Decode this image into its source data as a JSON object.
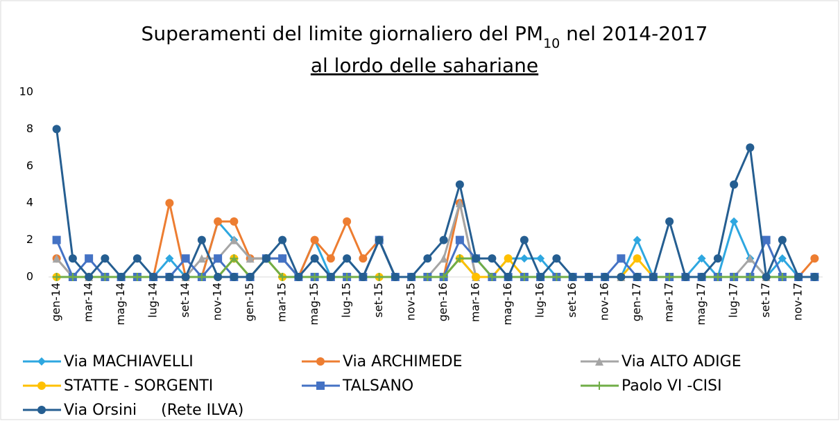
{
  "chart_data": {
    "type": "line",
    "title": "Superamenti del limite giornaliero del PM",
    "title_subscript": "10",
    "title_suffix": " nel 2014-2017",
    "subtitle": "al lordo delle sahariane",
    "categories": [
      "gen-14",
      null,
      "mar-14",
      null,
      "mag-14",
      null,
      "lug-14",
      null,
      "set-14",
      null,
      "nov-14",
      null,
      "gen-15",
      null,
      "mar-15",
      null,
      "mag-15",
      null,
      "lug-15",
      null,
      "set-15",
      null,
      "nov-15",
      null,
      "gen-16",
      null,
      "mar-16",
      null,
      "mag-16",
      null,
      "lug-16",
      null,
      "set-16",
      null,
      "nov-16",
      null,
      "gen-17",
      null,
      "mar-17",
      null,
      "mag-17",
      null,
      "lug-17",
      null,
      "set-17",
      null,
      "nov-17",
      null
    ],
    "ylim": [
      0,
      10
    ],
    "yticks": [
      0,
      2,
      4,
      6,
      8,
      10
    ],
    "grid": false,
    "series": [
      {
        "name": "Via MACHIAVELLI",
        "color": "#2ea7e0",
        "marker": "diamond",
        "values": [
          0,
          0,
          0,
          0,
          0,
          0,
          0,
          1,
          0,
          0,
          3,
          2,
          1,
          1,
          1,
          0,
          2,
          0,
          1,
          0,
          2,
          0,
          0,
          0,
          0,
          1,
          0,
          0,
          1,
          1,
          1,
          0,
          0,
          0,
          0,
          0,
          2,
          0,
          0,
          0,
          1,
          0,
          3,
          1,
          0,
          1,
          0,
          0
        ]
      },
      {
        "name": "Via ARCHIMEDE",
        "color": "#ed7d31",
        "marker": "circle",
        "values": [
          1,
          0,
          0,
          0,
          0,
          0,
          0,
          4,
          0,
          0,
          3,
          3,
          1,
          1,
          1,
          0,
          2,
          1,
          3,
          1,
          2,
          0,
          0,
          0,
          0,
          4,
          0,
          0,
          0,
          0,
          0,
          0,
          0,
          0,
          0,
          0,
          0,
          0,
          0,
          0,
          0,
          0,
          0,
          0,
          0,
          0,
          0,
          1
        ]
      },
      {
        "name": "Via ALTO ADIGE",
        "color": "#a5a5a5",
        "marker": "triangle",
        "values": [
          1,
          0,
          0,
          0,
          0,
          0,
          0,
          0,
          0,
          1,
          1,
          2,
          1,
          1,
          1,
          0,
          0,
          0,
          0,
          0,
          2,
          0,
          0,
          0,
          1,
          4,
          0,
          0,
          0,
          0,
          0,
          0,
          0,
          0,
          0,
          0,
          0,
          0,
          0,
          0,
          0,
          0,
          0,
          1,
          0,
          0,
          0,
          0
        ]
      },
      {
        "name": "STATTE - SORGENTI",
        "color": "#ffc000",
        "marker": "circle",
        "values": [
          0,
          0,
          0,
          0,
          0,
          0,
          0,
          0,
          0,
          0,
          0,
          1,
          0,
          1,
          0,
          0,
          0,
          0,
          0,
          0,
          0,
          0,
          0,
          0,
          0,
          1,
          0,
          0,
          1,
          0,
          0,
          0,
          0,
          0,
          0,
          0,
          1,
          0,
          0,
          0,
          0,
          0,
          0,
          0,
          0,
          0,
          0,
          0
        ]
      },
      {
        "name": "TALSANO",
        "color": "#4472c4",
        "marker": "square",
        "values": [
          2,
          0,
          1,
          0,
          0,
          0,
          0,
          0,
          1,
          0,
          1,
          0,
          0,
          1,
          1,
          0,
          0,
          0,
          0,
          0,
          2,
          0,
          0,
          0,
          0,
          2,
          1,
          0,
          0,
          0,
          0,
          0,
          0,
          0,
          0,
          1,
          0,
          0,
          0,
          0,
          0,
          0,
          0,
          0,
          2,
          0,
          0,
          0
        ]
      },
      {
        "name": "Paolo VI -CISI",
        "color": "#70ad47",
        "marker": "plus",
        "values": [
          0,
          0,
          0,
          0,
          0,
          0,
          0,
          0,
          0,
          0,
          0,
          1,
          0,
          1,
          0,
          0,
          0,
          0,
          0,
          0,
          0,
          0,
          0,
          0,
          0,
          1,
          1,
          0,
          0,
          0,
          0,
          0,
          0,
          0,
          0,
          0,
          0,
          0,
          0,
          0,
          0,
          0,
          0,
          0,
          0,
          0,
          0,
          0
        ]
      },
      {
        "name": "Via Orsini     (Rete ILVA)",
        "color": "#255e91",
        "marker": "circle",
        "values": [
          8,
          1,
          0,
          1,
          0,
          1,
          0,
          0,
          0,
          2,
          0,
          0,
          0,
          1,
          2,
          0,
          1,
          0,
          1,
          0,
          2,
          0,
          0,
          1,
          2,
          5,
          1,
          1,
          0,
          2,
          0,
          1,
          0,
          0,
          0,
          0,
          0,
          0,
          3,
          0,
          0,
          1,
          5,
          7,
          0,
          2,
          0,
          0
        ]
      }
    ]
  }
}
